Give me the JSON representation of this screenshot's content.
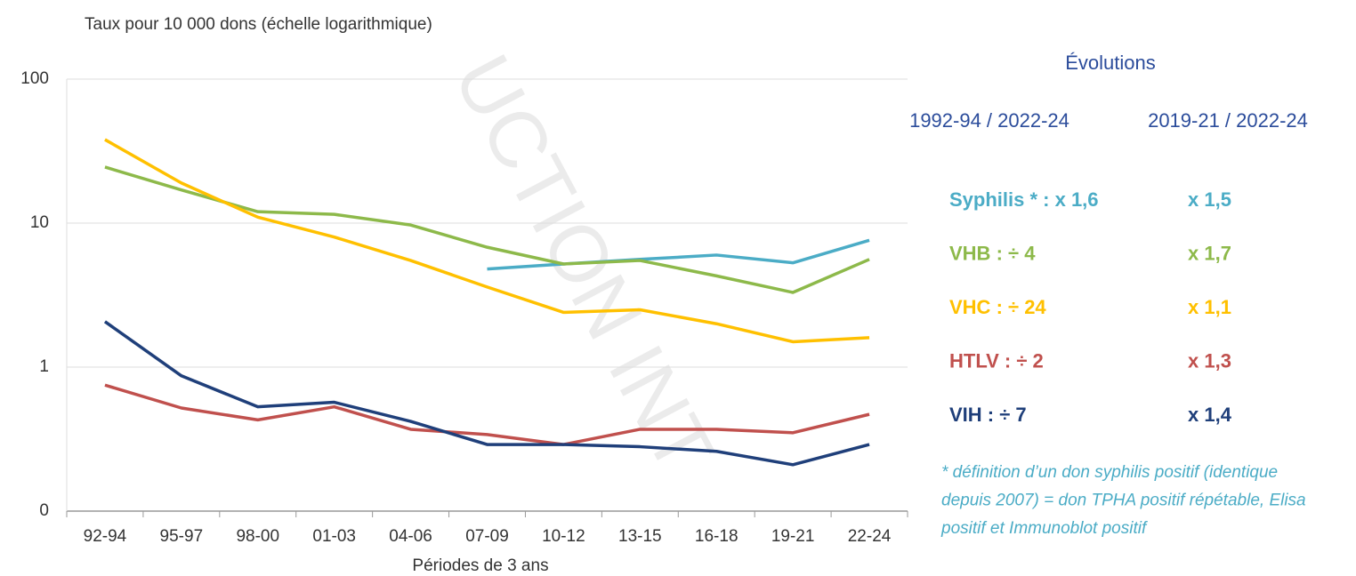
{
  "chart_data": {
    "type": "line",
    "title": "Taux pour 10 000 dons (échelle logarithmique)",
    "xlabel": "Périodes de 3 ans",
    "watermark": "UCTION INT",
    "categories": [
      "92-94",
      "95-97",
      "98-00",
      "01-03",
      "04-06",
      "07-09",
      "10-12",
      "13-15",
      "16-18",
      "19-21",
      "22-24"
    ],
    "log_scale": true,
    "grid": true,
    "ylim": [
      0.1,
      100
    ],
    "yticks": [
      {
        "value": 0.1,
        "label": "0"
      },
      1,
      10,
      100
    ],
    "series": [
      {
        "name": "Syphilis *",
        "color": "#4bacc6",
        "values": [
          null,
          null,
          null,
          null,
          null,
          4.8,
          5.2,
          5.6,
          6.0,
          5.3,
          7.6
        ]
      },
      {
        "name": "VHB",
        "color": "#8db94a",
        "values": [
          24.5,
          17,
          12,
          11.5,
          9.7,
          6.8,
          5.2,
          5.5,
          4.3,
          3.3,
          5.6
        ]
      },
      {
        "name": "VHC",
        "color": "#ffc000",
        "values": [
          38,
          19,
          11,
          8,
          5.5,
          3.6,
          2.4,
          2.5,
          2.0,
          1.5,
          1.6
        ]
      },
      {
        "name": "HTLV",
        "color": "#c0504d",
        "values": [
          0.75,
          0.52,
          0.43,
          0.53,
          0.37,
          0.34,
          0.29,
          0.37,
          0.37,
          0.35,
          0.47
        ]
      },
      {
        "name": "VIH",
        "color": "#1f3f7a",
        "values": [
          2.07,
          0.87,
          0.53,
          0.57,
          0.42,
          0.29,
          0.29,
          0.28,
          0.26,
          0.21,
          0.29
        ]
      }
    ],
    "panel": {
      "title": "Évolutions",
      "columns": [
        "1992-94 / 2022-24",
        "2019-21 / 2022-24"
      ],
      "rows": [
        [
          " : x 1,6",
          "x 1,5"
        ],
        [
          " : ÷ 4",
          "x 1,7"
        ],
        [
          " : ÷ 24",
          "x 1,1"
        ],
        [
          " : ÷ 2",
          "x 1,3"
        ],
        [
          " : ÷ 7",
          "x 1,4"
        ]
      ],
      "footnote": [
        "* définition d’un don syphilis positif (identique",
        "depuis 2007) = don TPHA positif répétable, Elisa",
        "positif et Immunoblot positif"
      ]
    }
  }
}
